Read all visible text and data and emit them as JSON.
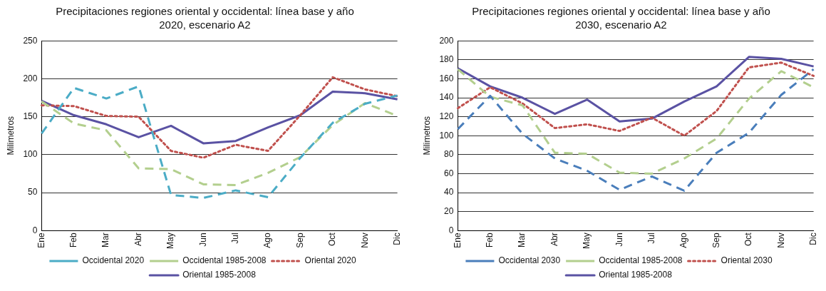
{
  "chart_data": [
    {
      "type": "line",
      "title": "Precipitaciones regiones oriental y occidental: línea base y año 2020, escenario A2",
      "ylabel": "Milimetros",
      "categories": [
        "Ene",
        "Feb",
        "Mar",
        "Abr",
        "May",
        "Jun",
        "Jul",
        "Ago",
        "Sep",
        "Oct",
        "Nov",
        "Dic"
      ],
      "ylim": [
        0,
        250
      ],
      "yticks": [
        0,
        50,
        100,
        150,
        200,
        250
      ],
      "grid": "y",
      "legend": "bottom",
      "marker": "none",
      "series": [
        {
          "name": "Occidental 2020",
          "color": "#4bacc6",
          "line_style": "dashed",
          "values": [
            128,
            188,
            174,
            190,
            47,
            43,
            53,
            44,
            96,
            142,
            167,
            178
          ]
        },
        {
          "name": "Occidental 1985-2008",
          "color": "#b3cf8e",
          "line_style": "dashed",
          "values": [
            170,
            141,
            132,
            82,
            81,
            61,
            60,
            76,
            97,
            139,
            168,
            151
          ]
        },
        {
          "name": "Oriental 2020",
          "color": "#c0504d",
          "line_style": "dotted",
          "values": [
            165,
            164,
            151,
            150,
            105,
            96,
            113,
            105,
            152,
            202,
            186,
            177
          ]
        },
        {
          "name": "Oriental 1985-2008",
          "color": "#5a52a3",
          "line_style": "solid",
          "values": [
            171,
            152,
            140,
            123,
            138,
            115,
            118,
            136,
            152,
            183,
            181,
            173
          ]
        }
      ]
    },
    {
      "type": "line",
      "title": "Precipitaciones regiones oriental y occidental: línea base y año 2030, escenario A2",
      "ylabel": "Milimetros",
      "categories": [
        "Ene",
        "Feb",
        "Mar",
        "Abr",
        "May",
        "Jun",
        "Jul",
        "Ago",
        "Sep",
        "Oct",
        "Nov",
        "Dic"
      ],
      "ylim": [
        0,
        200
      ],
      "yticks": [
        0,
        20,
        40,
        60,
        80,
        100,
        120,
        140,
        160,
        180,
        200
      ],
      "grid": "y",
      "legend": "bottom",
      "marker": "none",
      "series": [
        {
          "name": "Occidental 2030",
          "color": "#4a7ebb",
          "line_style": "dashed",
          "values": [
            107,
            142,
            102,
            76,
            63,
            43,
            57,
            42,
            82,
            103,
            143,
            170
          ]
        },
        {
          "name": "Occidental 1985-2008",
          "color": "#b3cf8e",
          "line_style": "dashed",
          "values": [
            170,
            141,
            132,
            82,
            81,
            61,
            60,
            76,
            97,
            139,
            168,
            151
          ]
        },
        {
          "name": "Oriental 2030",
          "color": "#c0504d",
          "line_style": "dotted",
          "values": [
            129,
            151,
            134,
            108,
            112,
            105,
            119,
            100,
            126,
            172,
            177,
            163
          ]
        },
        {
          "name": "Oriental 1985-2008",
          "color": "#5a52a3",
          "line_style": "solid",
          "values": [
            171,
            152,
            140,
            123,
            138,
            115,
            118,
            136,
            152,
            183,
            181,
            173
          ]
        }
      ]
    }
  ]
}
